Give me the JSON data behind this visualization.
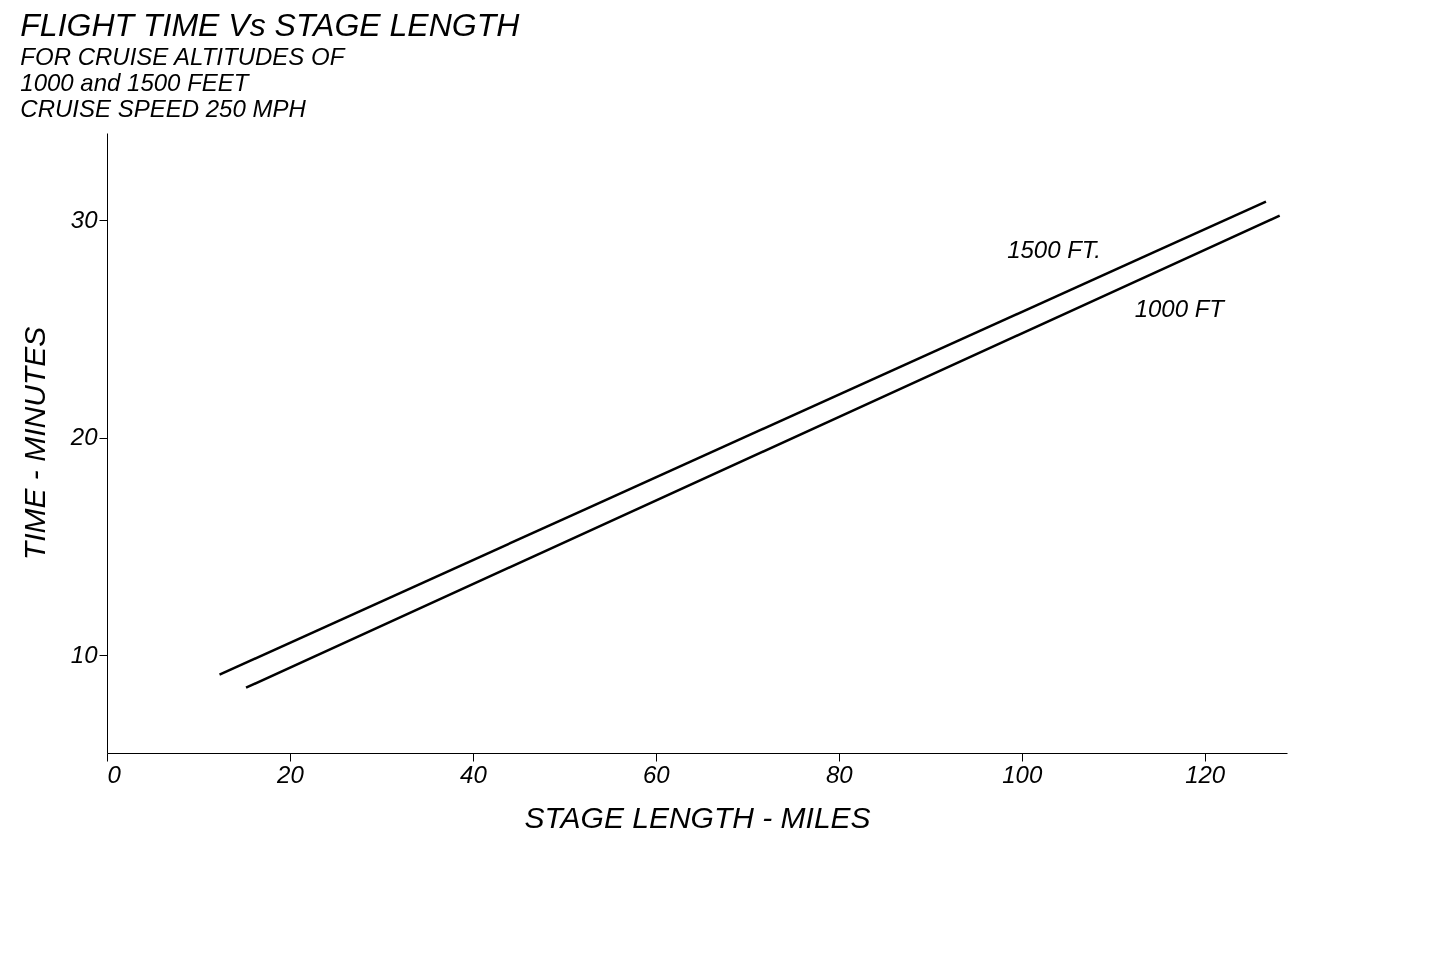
{
  "chart_data": {
    "type": "line",
    "title": "FLIGHT TIME Vs STAGE LENGTH",
    "subtitle": "FOR CRUISE ALTITUDES OF\n1000 and 1500 FEET\nCRUISE SPEED 250 MPH",
    "xlabel": "STAGE LENGTH - MILES",
    "ylabel": "TIME - MINUTES",
    "series": [
      {
        "name": "1500 FT.",
        "color": "#000000",
        "x": [
          12.3,
          126.7
        ],
        "values": [
          9.1,
          30.85
        ]
      },
      {
        "name": "1000 FT",
        "color": "#000000",
        "x": [
          15.2,
          128.2
        ],
        "values": [
          8.5,
          30.2
        ]
      }
    ],
    "xlim": [
      0,
      129
    ],
    "ylim": [
      5.5,
      34
    ],
    "xticks": [
      0,
      20,
      40,
      60,
      80,
      100,
      120
    ],
    "yticks": [
      10,
      20,
      30
    ],
    "grid": false,
    "line_style": "solid"
  }
}
